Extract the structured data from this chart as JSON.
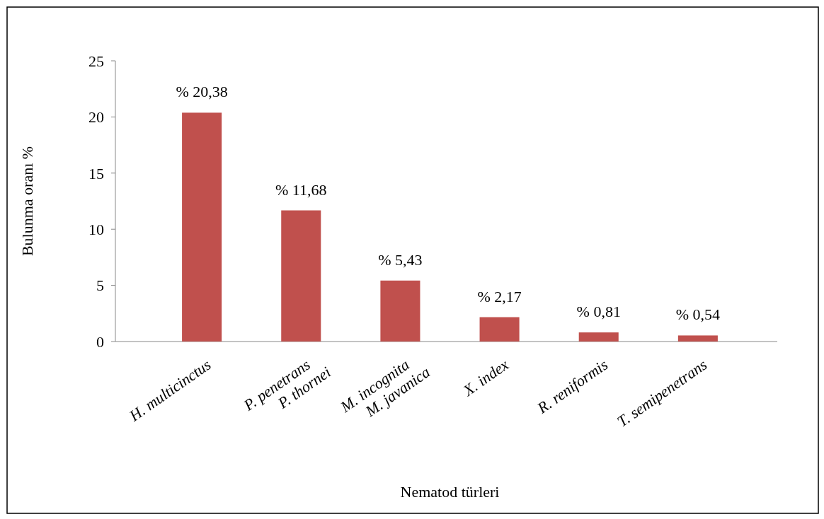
{
  "chart_data": {
    "type": "bar",
    "xlabel": "Nematod türleri",
    "ylabel": "Bulunma oranı %",
    "categories": [
      "H. multicinctus",
      "P. penetrans\nP. thornei",
      "M. incognita\nM. javanica",
      "X. index",
      "R. reniformis",
      "T. semipenetrans"
    ],
    "values": [
      20.38,
      11.68,
      5.43,
      2.17,
      0.81,
      0.54
    ],
    "value_labels": [
      "% 20,38",
      "% 11,68",
      "% 5,43",
      "% 2,17",
      "% 0,81",
      "% 0,54"
    ],
    "color": "#c0504d",
    "ylim": [
      0,
      25
    ],
    "yticks": [
      0,
      5,
      10,
      15,
      20,
      25
    ],
    "grid": false
  }
}
